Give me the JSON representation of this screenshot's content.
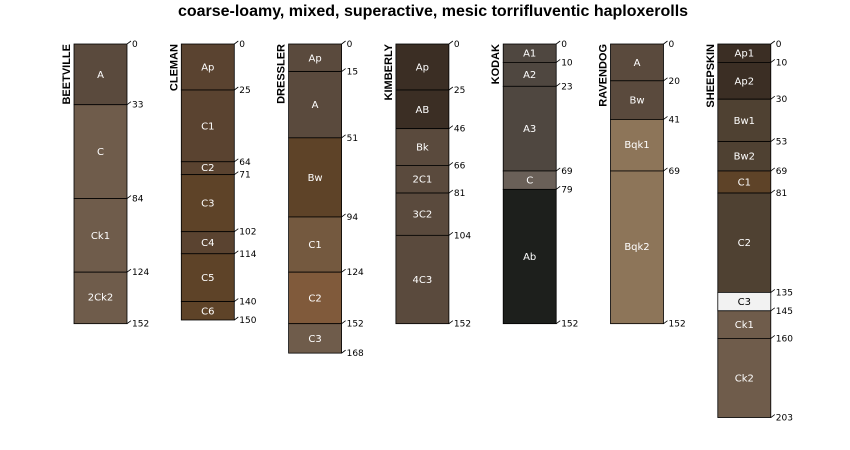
{
  "chart_data": {
    "type": "soil-profile-sketch",
    "title": "coarse-loamy, mixed, superactive, mesic torrifluventic haploxerolls",
    "depth_units": "cm",
    "profiles": [
      {
        "name": "BEETVILLE",
        "horizons": [
          {
            "name": "A",
            "top": 0,
            "bottom": 33,
            "color": "#5a4a3d"
          },
          {
            "name": "C",
            "top": 33,
            "bottom": 84,
            "color": "#6f5c4b"
          },
          {
            "name": "Ck1",
            "top": 84,
            "bottom": 124,
            "color": "#6f5c4b"
          },
          {
            "name": "2Ck2",
            "top": 124,
            "bottom": 152,
            "color": "#6f5c4b"
          }
        ]
      },
      {
        "name": "CLEMAN",
        "horizons": [
          {
            "name": "Ap",
            "top": 0,
            "bottom": 25,
            "color": "#5a4330"
          },
          {
            "name": "C1",
            "top": 25,
            "bottom": 64,
            "color": "#5a4330"
          },
          {
            "name": "C2",
            "top": 64,
            "bottom": 71,
            "color": "#5a4330"
          },
          {
            "name": "C3",
            "top": 71,
            "bottom": 102,
            "color": "#5e4328"
          },
          {
            "name": "C4",
            "top": 102,
            "bottom": 114,
            "color": "#5a4330"
          },
          {
            "name": "C5",
            "top": 114,
            "bottom": 140,
            "color": "#5e4328"
          },
          {
            "name": "C6",
            "top": 140,
            "bottom": 150,
            "color": "#5e4328"
          }
        ]
      },
      {
        "name": "DRESSLER",
        "horizons": [
          {
            "name": "Ap",
            "top": 0,
            "bottom": 15,
            "color": "#5a4a3d"
          },
          {
            "name": "A",
            "top": 15,
            "bottom": 51,
            "color": "#5a4a3d"
          },
          {
            "name": "Bw",
            "top": 51,
            "bottom": 94,
            "color": "#5e4328"
          },
          {
            "name": "C1",
            "top": 94,
            "bottom": 124,
            "color": "#74593f"
          },
          {
            "name": "C2",
            "top": 124,
            "bottom": 152,
            "color": "#805a3b"
          },
          {
            "name": "C3",
            "top": 152,
            "bottom": 168,
            "color": "#6f5c4b"
          }
        ]
      },
      {
        "name": "KIMBERLY",
        "horizons": [
          {
            "name": "Ap",
            "top": 0,
            "bottom": 25,
            "color": "#3b2e24"
          },
          {
            "name": "AB",
            "top": 25,
            "bottom": 46,
            "color": "#3b2e24"
          },
          {
            "name": "Bk",
            "top": 46,
            "bottom": 66,
            "color": "#5a4a3d"
          },
          {
            "name": "2C1",
            "top": 66,
            "bottom": 81,
            "color": "#5a4a3d"
          },
          {
            "name": "3C2",
            "top": 81,
            "bottom": 104,
            "color": "#5a4a3d"
          },
          {
            "name": "4C3",
            "top": 104,
            "bottom": 152,
            "color": "#5a4a3d"
          }
        ]
      },
      {
        "name": "KODAK",
        "horizons": [
          {
            "name": "A1",
            "top": 0,
            "bottom": 10,
            "color": "#4f4740"
          },
          {
            "name": "A2",
            "top": 10,
            "bottom": 23,
            "color": "#4f4740"
          },
          {
            "name": "A3",
            "top": 23,
            "bottom": 69,
            "color": "#4f4740"
          },
          {
            "name": "C",
            "top": 69,
            "bottom": 79,
            "color": "#6a6058"
          },
          {
            "name": "Ab",
            "top": 79,
            "bottom": 152,
            "color": "#1d1f1c"
          }
        ]
      },
      {
        "name": "RAVENDOG",
        "horizons": [
          {
            "name": "A",
            "top": 0,
            "bottom": 20,
            "color": "#5a4a3d"
          },
          {
            "name": "Bw",
            "top": 20,
            "bottom": 41,
            "color": "#5a4a3d"
          },
          {
            "name": "Bqk1",
            "top": 41,
            "bottom": 69,
            "color": "#8d7559"
          },
          {
            "name": "Bqk2",
            "top": 69,
            "bottom": 152,
            "color": "#8d7559"
          }
        ]
      },
      {
        "name": "SHEEPSKIN",
        "horizons": [
          {
            "name": "Ap1",
            "top": 0,
            "bottom": 10,
            "color": "#3b2e24"
          },
          {
            "name": "Ap2",
            "top": 10,
            "bottom": 30,
            "color": "#3b2e24"
          },
          {
            "name": "Bw1",
            "top": 30,
            "bottom": 53,
            "color": "#4f4132"
          },
          {
            "name": "Bw2",
            "top": 53,
            "bottom": 69,
            "color": "#4f4132"
          },
          {
            "name": "C1",
            "top": 69,
            "bottom": 81,
            "color": "#5e4328"
          },
          {
            "name": "C2",
            "top": 81,
            "bottom": 135,
            "color": "#4f4132"
          },
          {
            "name": "C3",
            "top": 135,
            "bottom": 145,
            "color": "#f2f2f2"
          },
          {
            "name": "Ck1",
            "top": 145,
            "bottom": 160,
            "color": "#6f5c4b"
          },
          {
            "name": "Ck2",
            "top": 160,
            "bottom": 203,
            "color": "#6f5c4b"
          }
        ]
      }
    ]
  }
}
